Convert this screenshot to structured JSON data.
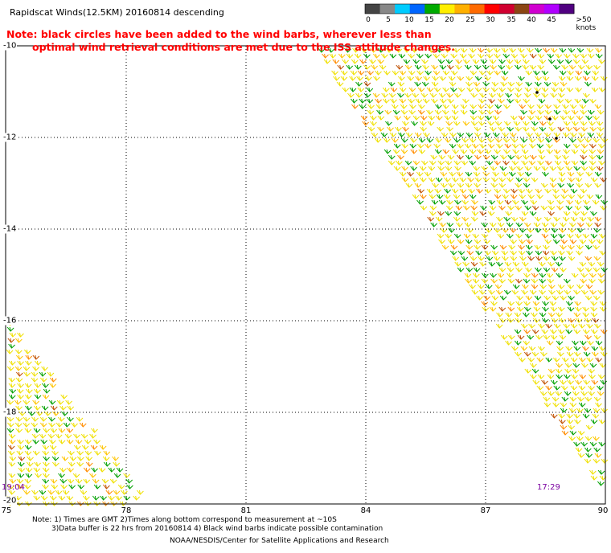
{
  "title": "Rapidscat Winds(12.5KM) 20160814 descending",
  "note_lines": [
    "Note: black circles have been added to the wind barbs, wherever less than",
    "optimal wind retrieval conditions are met due to the ISS attitude changes."
  ],
  "colorbar": {
    "labels": [
      "0",
      "5",
      "10",
      "15",
      "20",
      "25",
      "30",
      "35",
      "40",
      "45",
      ">50 knots"
    ],
    "colors": [
      "#444444",
      "#888888",
      "#00ccff",
      "#0066ff",
      "#00aa00",
      "#ffee00",
      "#ffb000",
      "#ff6a00",
      "#ff0000",
      "#d00030",
      "#8b4513",
      "#d000d0",
      "#b000ff",
      "#500080"
    ]
  },
  "map": {
    "lat_labels": [
      "-10",
      "-12",
      "-14",
      "-16",
      "-18",
      "-20"
    ],
    "lon_labels": [
      "75",
      "78",
      "81",
      "84",
      "87",
      "90"
    ],
    "swath_times": [
      "19:04",
      "17:29"
    ]
  },
  "footer": {
    "line1": "Note: 1) Times are GMT 2)Times along bottom correspond to measurement at ~10S",
    "line2": "3)Data buffer is 22 hrs from 20160814 4) Black wind barbs indicate possible contamination",
    "line3": "NOAA/NESDIS/Center for Satellite Applications and Research"
  }
}
